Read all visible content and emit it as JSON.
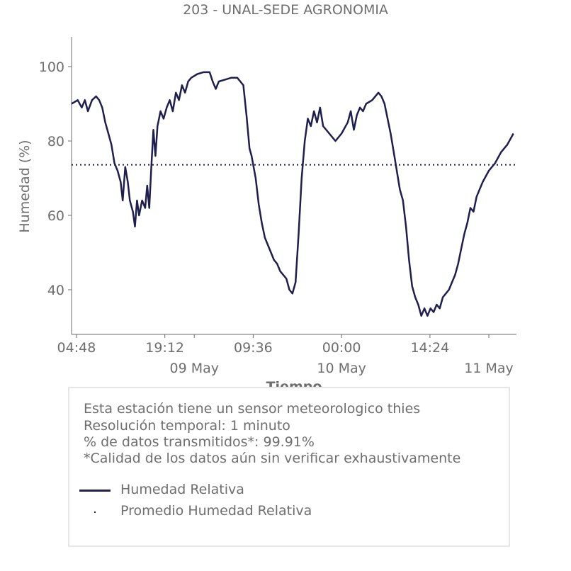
{
  "title": "203 - UNAL-SEDE AGRONOMIA",
  "chart_data": {
    "type": "line",
    "title": "203 - UNAL-SEDE AGRONOMIA",
    "xlabel": "Tiempo",
    "ylabel": "Humedad (%)",
    "x_start": "2024-05-08 04:00",
    "x_end": "2024-05-11 04:30",
    "ylim": [
      28,
      108
    ],
    "yticks": [
      40,
      60,
      80,
      100
    ],
    "xticks": [
      {
        "time": "2024-05-08 04:48",
        "label": "04:48",
        "sublabel": ""
      },
      {
        "time": "2024-05-08 19:12",
        "label": "19:12",
        "sublabel": ""
      },
      {
        "time": "2024-05-09 00:00",
        "label": "",
        "sublabel": "09 May"
      },
      {
        "time": "2024-05-09 09:36",
        "label": "09:36",
        "sublabel": ""
      },
      {
        "time": "2024-05-10 00:00",
        "label": "00:00",
        "sublabel": "10 May"
      },
      {
        "time": "2024-05-10 14:24",
        "label": "14:24",
        "sublabel": ""
      },
      {
        "time": "2024-05-11 00:00",
        "label": "",
        "sublabel": "11 May"
      }
    ],
    "grid": false,
    "series": [
      {
        "name": "Humedad Relativa",
        "color": "#1f1f4d",
        "style": "solid",
        "points": [
          [
            "2024-05-08 04:00",
            90
          ],
          [
            "2024-05-08 05:00",
            91
          ],
          [
            "2024-05-08 05:40",
            89
          ],
          [
            "2024-05-08 06:10",
            91
          ],
          [
            "2024-05-08 06:40",
            88
          ],
          [
            "2024-05-08 07:20",
            91
          ],
          [
            "2024-05-08 08:00",
            92
          ],
          [
            "2024-05-08 08:30",
            91
          ],
          [
            "2024-05-08 09:00",
            89
          ],
          [
            "2024-05-08 09:30",
            85
          ],
          [
            "2024-05-08 10:00",
            82
          ],
          [
            "2024-05-08 10:30",
            79
          ],
          [
            "2024-05-08 11:00",
            74
          ],
          [
            "2024-05-08 11:30",
            72
          ],
          [
            "2024-05-08 12:00",
            69
          ],
          [
            "2024-05-08 12:20",
            64
          ],
          [
            "2024-05-08 12:45",
            73
          ],
          [
            "2024-05-08 13:10",
            69
          ],
          [
            "2024-05-08 13:30",
            64
          ],
          [
            "2024-05-08 14:00",
            61
          ],
          [
            "2024-05-08 14:20",
            57
          ],
          [
            "2024-05-08 14:40",
            64
          ],
          [
            "2024-05-08 15:00",
            60
          ],
          [
            "2024-05-08 15:30",
            64
          ],
          [
            "2024-05-08 16:00",
            62
          ],
          [
            "2024-05-08 16:20",
            68
          ],
          [
            "2024-05-08 16:40",
            62
          ],
          [
            "2024-05-08 17:00",
            73
          ],
          [
            "2024-05-08 17:20",
            83
          ],
          [
            "2024-05-08 17:40",
            76
          ],
          [
            "2024-05-08 18:00",
            84
          ],
          [
            "2024-05-08 18:30",
            88
          ],
          [
            "2024-05-08 19:00",
            86
          ],
          [
            "2024-05-08 19:30",
            89
          ],
          [
            "2024-05-08 20:00",
            91
          ],
          [
            "2024-05-08 20:30",
            88
          ],
          [
            "2024-05-08 21:00",
            93
          ],
          [
            "2024-05-08 21:30",
            91
          ],
          [
            "2024-05-08 22:00",
            95
          ],
          [
            "2024-05-08 22:30",
            93
          ],
          [
            "2024-05-08 23:00",
            96
          ],
          [
            "2024-05-08 23:30",
            97
          ],
          [
            "2024-05-09 00:30",
            98
          ],
          [
            "2024-05-09 01:30",
            98.5
          ],
          [
            "2024-05-09 02:30",
            98.5
          ],
          [
            "2024-05-09 03:00",
            96
          ],
          [
            "2024-05-09 03:30",
            94
          ],
          [
            "2024-05-09 04:00",
            96
          ],
          [
            "2024-05-09 05:00",
            96.5
          ],
          [
            "2024-05-09 06:00",
            97
          ],
          [
            "2024-05-09 07:00",
            97
          ],
          [
            "2024-05-09 07:30",
            96
          ],
          [
            "2024-05-09 08:00",
            95
          ],
          [
            "2024-05-09 08:30",
            87
          ],
          [
            "2024-05-09 09:00",
            78
          ],
          [
            "2024-05-09 09:20",
            76
          ],
          [
            "2024-05-09 09:40",
            73
          ],
          [
            "2024-05-09 10:00",
            70
          ],
          [
            "2024-05-09 10:30",
            63
          ],
          [
            "2024-05-09 11:00",
            58
          ],
          [
            "2024-05-09 11:30",
            54
          ],
          [
            "2024-05-09 12:00",
            52
          ],
          [
            "2024-05-09 12:30",
            50
          ],
          [
            "2024-05-09 13:00",
            48
          ],
          [
            "2024-05-09 13:30",
            47
          ],
          [
            "2024-05-09 14:00",
            45
          ],
          [
            "2024-05-09 14:30",
            44
          ],
          [
            "2024-05-09 15:00",
            43
          ],
          [
            "2024-05-09 15:30",
            40
          ],
          [
            "2024-05-09 16:00",
            39
          ],
          [
            "2024-05-09 16:30",
            42
          ],
          [
            "2024-05-09 17:00",
            55
          ],
          [
            "2024-05-09 17:30",
            70
          ],
          [
            "2024-05-09 18:00",
            80
          ],
          [
            "2024-05-09 18:30",
            86
          ],
          [
            "2024-05-09 19:00",
            84
          ],
          [
            "2024-05-09 19:30",
            88
          ],
          [
            "2024-05-09 20:00",
            85
          ],
          [
            "2024-05-09 20:30",
            89
          ],
          [
            "2024-05-09 21:00",
            84
          ],
          [
            "2024-05-09 22:00",
            82
          ],
          [
            "2024-05-09 23:00",
            80
          ],
          [
            "2024-05-10 00:00",
            82
          ],
          [
            "2024-05-10 01:00",
            85
          ],
          [
            "2024-05-10 01:30",
            88
          ],
          [
            "2024-05-10 02:00",
            83
          ],
          [
            "2024-05-10 02:30",
            87
          ],
          [
            "2024-05-10 03:00",
            89
          ],
          [
            "2024-05-10 03:30",
            88
          ],
          [
            "2024-05-10 04:00",
            90
          ],
          [
            "2024-05-10 05:00",
            91
          ],
          [
            "2024-05-10 06:00",
            93
          ],
          [
            "2024-05-10 06:30",
            92
          ],
          [
            "2024-05-10 07:00",
            90
          ],
          [
            "2024-05-10 07:30",
            86
          ],
          [
            "2024-05-10 08:00",
            82
          ],
          [
            "2024-05-10 08:30",
            77
          ],
          [
            "2024-05-10 09:00",
            72
          ],
          [
            "2024-05-10 09:30",
            67
          ],
          [
            "2024-05-10 10:00",
            64
          ],
          [
            "2024-05-10 10:30",
            57
          ],
          [
            "2024-05-10 11:00",
            48
          ],
          [
            "2024-05-10 11:30",
            41
          ],
          [
            "2024-05-10 12:00",
            38
          ],
          [
            "2024-05-10 12:30",
            36
          ],
          [
            "2024-05-10 13:00",
            33
          ],
          [
            "2024-05-10 13:30",
            35
          ],
          [
            "2024-05-10 14:00",
            33
          ],
          [
            "2024-05-10 14:30",
            35
          ],
          [
            "2024-05-10 15:00",
            34
          ],
          [
            "2024-05-10 15:30",
            36
          ],
          [
            "2024-05-10 16:00",
            35
          ],
          [
            "2024-05-10 16:30",
            38
          ],
          [
            "2024-05-10 17:00",
            39
          ],
          [
            "2024-05-10 17:30",
            40
          ],
          [
            "2024-05-10 18:00",
            42
          ],
          [
            "2024-05-10 18:30",
            44
          ],
          [
            "2024-05-10 19:00",
            47
          ],
          [
            "2024-05-10 19:30",
            51
          ],
          [
            "2024-05-10 20:00",
            55
          ],
          [
            "2024-05-10 20:30",
            58
          ],
          [
            "2024-05-10 21:00",
            62
          ],
          [
            "2024-05-10 21:30",
            61
          ],
          [
            "2024-05-10 22:00",
            65
          ],
          [
            "2024-05-10 22:30",
            67
          ],
          [
            "2024-05-10 23:00",
            69
          ],
          [
            "2024-05-11 00:00",
            72
          ],
          [
            "2024-05-11 01:00",
            74
          ],
          [
            "2024-05-11 02:00",
            77
          ],
          [
            "2024-05-11 03:00",
            79
          ],
          [
            "2024-05-11 04:00",
            82
          ]
        ]
      },
      {
        "name": "Promedio Humedad Relativa",
        "color": "#1f1f4d",
        "style": "dotted",
        "value": 73.6
      }
    ]
  },
  "info": {
    "lines": [
      "Esta estación tiene un sensor meteorologico thies",
      "Resolución temporal: 1 minuto",
      "% de datos transmitidos*: 99.91%",
      "*Calidad de los datos aún sin verificar exhaustivamente"
    ]
  },
  "legend": {
    "items": [
      {
        "label": "Humedad Relativa",
        "marker": "line"
      },
      {
        "label": "Promedio Humedad Relativa",
        "marker": "dot"
      }
    ]
  }
}
